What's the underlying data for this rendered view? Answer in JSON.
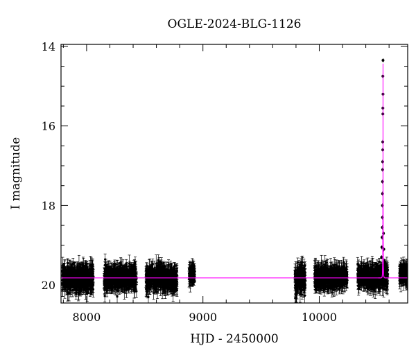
{
  "chart_data": {
    "type": "scatter",
    "title": "OGLE-2024-BLG-1126",
    "xlabel": "HJD - 2450000",
    "ylabel": "I magnitude",
    "xlim": [
      7780,
      10760
    ],
    "ylim": [
      20.45,
      13.95
    ],
    "y_inverted": true,
    "grid": false,
    "x_ticks": [
      8000,
      9000,
      10000
    ],
    "y_ticks": [
      14,
      16,
      18,
      20
    ],
    "x_tick_labels": [
      "8000",
      "9000",
      "10000"
    ],
    "y_tick_labels": [
      "14",
      "16",
      "18",
      "20"
    ],
    "colors": {
      "points": "#000000",
      "model": "#ff00ff",
      "axes": "#000000"
    },
    "baseline_magnitude": 19.82,
    "observation_seasons": [
      {
        "start": 7790,
        "end": 8060,
        "mean_mag": 19.82,
        "scatter": 0.3
      },
      {
        "start": 8150,
        "end": 8430,
        "mean_mag": 19.82,
        "scatter": 0.28
      },
      {
        "start": 8510,
        "end": 8780,
        "mean_mag": 19.82,
        "scatter": 0.28
      },
      {
        "start": 8880,
        "end": 8930,
        "mean_mag": 19.72,
        "scatter": 0.22
      },
      {
        "start": 9790,
        "end": 9880,
        "mean_mag": 19.85,
        "scatter": 0.32
      },
      {
        "start": 9960,
        "end": 10240,
        "mean_mag": 19.8,
        "scatter": 0.25
      },
      {
        "start": 10330,
        "end": 10590,
        "mean_mag": 19.78,
        "scatter": 0.25
      },
      {
        "start": 10690,
        "end": 10760,
        "mean_mag": 19.72,
        "scatter": 0.2
      }
    ],
    "peak_points": [
      {
        "x": 10548,
        "y": 14.35
      },
      {
        "x": 10547,
        "y": 14.75
      },
      {
        "x": 10548,
        "y": 15.2
      },
      {
        "x": 10547,
        "y": 15.55
      },
      {
        "x": 10547,
        "y": 15.7
      },
      {
        "x": 10546,
        "y": 16.4
      },
      {
        "x": 10546,
        "y": 16.6
      },
      {
        "x": 10545,
        "y": 16.9
      },
      {
        "x": 10545,
        "y": 17.1
      },
      {
        "x": 10544,
        "y": 17.4
      },
      {
        "x": 10544,
        "y": 17.7
      },
      {
        "x": 10543,
        "y": 18.0
      },
      {
        "x": 10543,
        "y": 18.3
      },
      {
        "x": 10542,
        "y": 18.55
      },
      {
        "x": 10540,
        "y": 18.8
      },
      {
        "x": 10538,
        "y": 19.05
      },
      {
        "x": 10535,
        "y": 19.3
      },
      {
        "x": 10552,
        "y": 18.7
      },
      {
        "x": 10555,
        "y": 19.1
      },
      {
        "x": 10560,
        "y": 19.4
      }
    ],
    "model": {
      "t0": 10548,
      "tE": 3.0,
      "u0": 0.007,
      "baseline_mag": 19.82,
      "peak_mag": 13.9
    }
  }
}
